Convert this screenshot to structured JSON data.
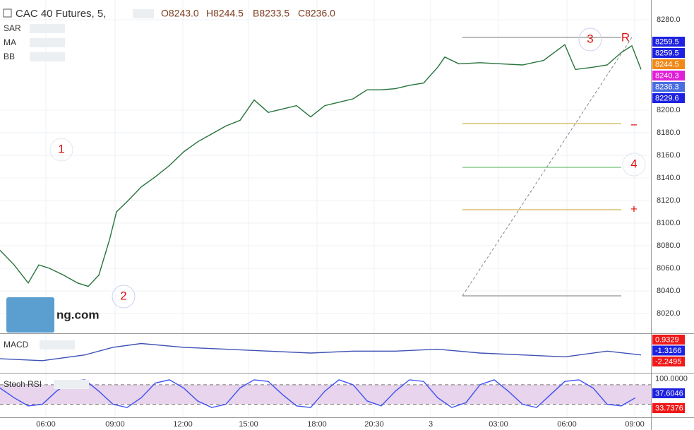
{
  "header": {
    "title": "CAC 40 Futures, 5,",
    "ohlc": [
      "O8243.0",
      "H8244.5",
      "B8233.5",
      "C8236.0"
    ],
    "indicators": [
      "SAR",
      "MA",
      "BB"
    ],
    "watermark": "ng.com"
  },
  "annotations": [
    "1",
    "2",
    "3",
    "4",
    "R",
    "−",
    "+"
  ],
  "chart_data": [
    {
      "type": "line",
      "grid": true,
      "x": [
        0,
        20,
        40,
        55,
        70,
        90,
        110,
        125,
        140,
        155,
        165,
        180,
        200,
        220,
        240,
        260,
        280,
        300,
        320,
        340,
        360,
        380,
        400,
        420,
        440,
        460,
        480,
        500,
        520,
        540,
        560,
        580,
        600,
        620,
        630,
        650,
        680,
        710,
        740,
        770,
        800,
        815,
        840,
        860,
        880,
        895,
        908
      ],
      "series": [
        {
          "color": "#26733a",
          "values": [
            8076,
            8063,
            8047,
            8063,
            8060,
            8054,
            8047,
            8044,
            8054,
            8085,
            8110,
            8119,
            8132,
            8141,
            8151,
            8163,
            8172,
            8179,
            8186,
            8191,
            8209,
            8198,
            8201,
            8204,
            8194,
            8204,
            8207,
            8210,
            8218,
            8218,
            8219,
            8222,
            8224,
            8238,
            8247,
            8241,
            8242,
            8241,
            8240,
            8244,
            8258,
            8236,
            8238,
            8240,
            8251,
            8257,
            8236
          ]
        }
      ],
      "xlim": [
        0,
        922
      ],
      "xticks": [
        {
          "value": 65,
          "label": "06:00"
        },
        {
          "value": 163,
          "label": "09:00"
        },
        {
          "value": 259,
          "label": "12:00"
        },
        {
          "value": 352,
          "label": "15:00"
        },
        {
          "value": 449,
          "label": "18:00"
        },
        {
          "value": 530,
          "label": "20:30"
        },
        {
          "value": 610,
          "label": "3"
        },
        {
          "value": 706,
          "label": "03:00"
        },
        {
          "value": 803,
          "label": "06:00"
        },
        {
          "value": 899,
          "label": "09:00"
        }
      ],
      "ylim": [
        8002.5,
        8297.5
      ],
      "yticks": [
        {
          "value": 8020,
          "label": "8020.0"
        },
        {
          "value": 8040,
          "label": "8040.0"
        },
        {
          "value": 8060,
          "label": "8060.0"
        },
        {
          "value": 8080,
          "label": "8080.0"
        },
        {
          "value": 8100,
          "label": "8100.0"
        },
        {
          "value": 8120,
          "label": "8120.0"
        },
        {
          "value": 8140,
          "label": "8140.0"
        },
        {
          "value": 8160,
          "label": "8160.0"
        },
        {
          "value": 8180,
          "label": "8180.0"
        },
        {
          "value": 8200,
          "label": "8200.0"
        },
        {
          "value": 8280,
          "label": "8280.0"
        }
      ],
      "price_tags": [
        {
          "value": 8259.5,
          "color": "#1e22e0"
        },
        {
          "value": 8259.5,
          "color": "#1e22e0"
        },
        {
          "value": 8244.5,
          "color": "#f0891a"
        },
        {
          "value": 8240.3,
          "color": "#e020d8"
        },
        {
          "value": 8236.3,
          "color": "#4a6ee0"
        },
        {
          "value": 8229.6,
          "color": "#1e22e0"
        }
      ]
    },
    {
      "type": "line",
      "title": "MACD",
      "xlim": [
        0,
        922
      ],
      "ylim": [
        -10,
        10
      ],
      "x": [
        0,
        60,
        120,
        160,
        200,
        260,
        320,
        380,
        440,
        500,
        560,
        620,
        680,
        740,
        800,
        860,
        908
      ],
      "series": [
        {
          "color": "#3f51b5",
          "values": [
            -3,
            -4,
            -1,
            3,
            5,
            3,
            2,
            1,
            0,
            1,
            1,
            2,
            0,
            -1,
            -2,
            1,
            -1
          ]
        }
      ],
      "price_tags": [
        {
          "value": 0.9329,
          "color": "#f01818"
        },
        {
          "value": -1.3166,
          "color": "#1e22e0"
        },
        {
          "value": -2.2495,
          "color": "#f01818"
        }
      ]
    },
    {
      "type": "line",
      "title": "Stoch RSI",
      "xlim": [
        0,
        922
      ],
      "ylim": [
        -20,
        110
      ],
      "band": [
        20,
        80
      ],
      "x": [
        0,
        20,
        40,
        60,
        80,
        100,
        120,
        140,
        160,
        180,
        200,
        220,
        240,
        260,
        280,
        300,
        320,
        340,
        360,
        380,
        400,
        420,
        440,
        460,
        480,
        500,
        520,
        540,
        560,
        580,
        600,
        620,
        640,
        660,
        680,
        700,
        720,
        740,
        760,
        780,
        800,
        820,
        840,
        860,
        880,
        900
      ],
      "series": [
        {
          "color": "#3f51f0",
          "values": [
            70,
            40,
            15,
            20,
            60,
            90,
            95,
            60,
            20,
            10,
            40,
            85,
            95,
            70,
            30,
            10,
            20,
            70,
            95,
            90,
            50,
            15,
            10,
            60,
            95,
            80,
            30,
            15,
            60,
            95,
            90,
            40,
            10,
            25,
            80,
            95,
            60,
            20,
            10,
            50,
            90,
            95,
            70,
            20,
            15,
            40
          ]
        }
      ],
      "price_tags": [
        {
          "value": 100,
          "label": "100.0000",
          "color": "#ffffff"
        },
        {
          "value": 37.6046,
          "color": "#1e22e0"
        },
        {
          "value": 33.7376,
          "color": "#f01818"
        }
      ]
    }
  ]
}
